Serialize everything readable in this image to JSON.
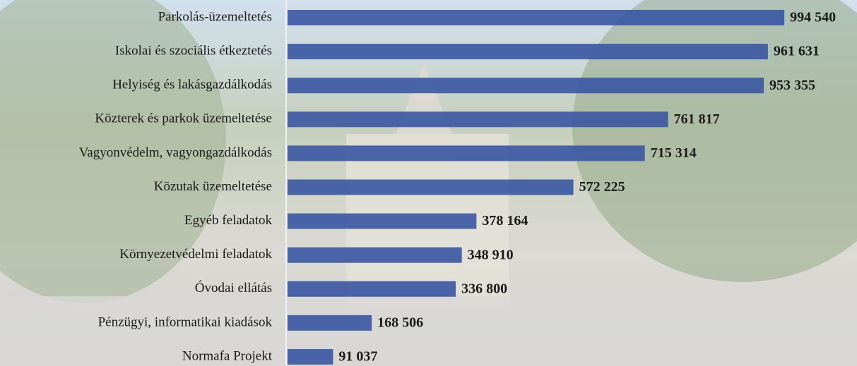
{
  "chart_data": {
    "type": "bar",
    "orientation": "horizontal",
    "categories": [
      "Parkolás-üzemeltetés",
      "Iskolai és szociális étkeztetés",
      "Helyiség és lakásgazdálkodás",
      "Közterek és parkok  üzemeltetése",
      "Vagyonvédelm, vagyongazdálkodás",
      "Közutak üzemeltetése",
      "Egyéb feladatok",
      "Környezetvédelmi feladatok",
      "Óvodai ellátás",
      "Pénzügyi, informatikai kiadások",
      "Normafa Projekt"
    ],
    "values": [
      994540,
      961631,
      953355,
      761817,
      715314,
      572225,
      378164,
      348910,
      336800,
      168506,
      91037
    ],
    "value_labels": [
      "994 540",
      "961 631",
      "953 355",
      "761 817",
      "715 314",
      "572 225",
      "378 164",
      "348 910",
      "336 800",
      "168 506",
      "91 037"
    ],
    "color": "#3a56a3"
  }
}
